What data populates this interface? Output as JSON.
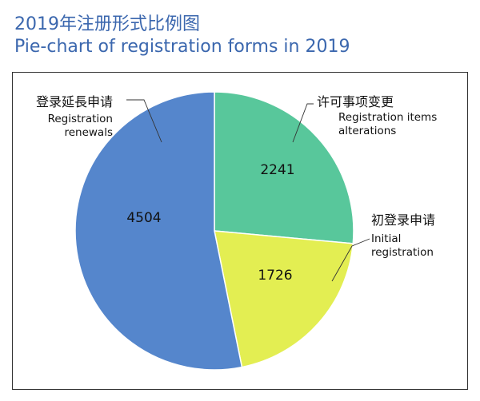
{
  "title_zh": "2019年注册形式比例图",
  "title_en": "Pie-chart of registration forms in 2019",
  "chart_data": {
    "type": "pie",
    "title": "2019年注册形式比例图",
    "subtitle": "Pie-chart of registration forms in 2019",
    "slices": [
      {
        "label_zh": "许可事项变更",
        "label_en": [
          "Registration items",
          "alterations"
        ],
        "value": 2241,
        "color": "#58c79b"
      },
      {
        "label_zh": "初登录申请",
        "label_en": [
          "Initial",
          "registration"
        ],
        "value": 1726,
        "color": "#e3ee52"
      },
      {
        "label_zh": "登录延長申请",
        "label_en": [
          "Registration",
          "renewals"
        ],
        "value": 4504,
        "color": "#5586cc"
      }
    ]
  }
}
